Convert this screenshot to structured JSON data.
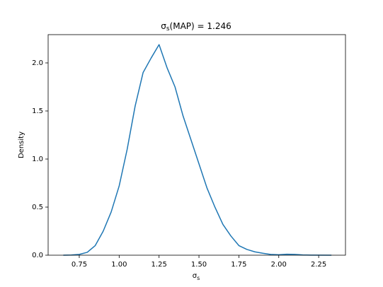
{
  "chart_data": {
    "type": "line",
    "title": {
      "symbol": "σ",
      "subscript": "s",
      "text": "(MAP) = 1.246"
    },
    "xlabel": {
      "symbol": "σ",
      "subscript": "s"
    },
    "ylabel": "Density",
    "x": [
      0.65,
      0.7,
      0.75,
      0.8,
      0.85,
      0.9,
      0.95,
      1.0,
      1.05,
      1.1,
      1.15,
      1.2,
      1.25,
      1.3,
      1.35,
      1.4,
      1.45,
      1.5,
      1.55,
      1.6,
      1.65,
      1.7,
      1.75,
      1.8,
      1.85,
      1.9,
      1.95,
      2.0,
      2.05,
      2.1,
      2.15,
      2.2,
      2.33
    ],
    "series": [
      {
        "color": "#1f77b4",
        "values": [
          0,
          0.002,
          0.008,
          0.03,
          0.1,
          0.25,
          0.45,
          0.72,
          1.1,
          1.55,
          1.9,
          2.05,
          2.19,
          1.95,
          1.75,
          1.45,
          1.2,
          0.95,
          0.7,
          0.5,
          0.32,
          0.2,
          0.1,
          0.06,
          0.035,
          0.02,
          0.008,
          0.005,
          0.01,
          0.008,
          0.003,
          0.001,
          0
        ]
      }
    ],
    "xlim": [
      0.555,
      2.418
    ],
    "ylim": [
      0,
      2.294
    ],
    "xticks": [
      0.75,
      {
        "value": 1,
        "label": "1.00"
      },
      1.25,
      {
        "value": 1.5,
        "label": "1.50"
      },
      1.75,
      {
        "value": 2,
        "label": "2.00"
      },
      2.25
    ],
    "yticks": [
      {
        "value": 0,
        "label": "0.0"
      },
      0.5,
      {
        "value": 1,
        "label": "1.0"
      },
      1.5,
      {
        "value": 2,
        "label": "2.0"
      }
    ]
  }
}
